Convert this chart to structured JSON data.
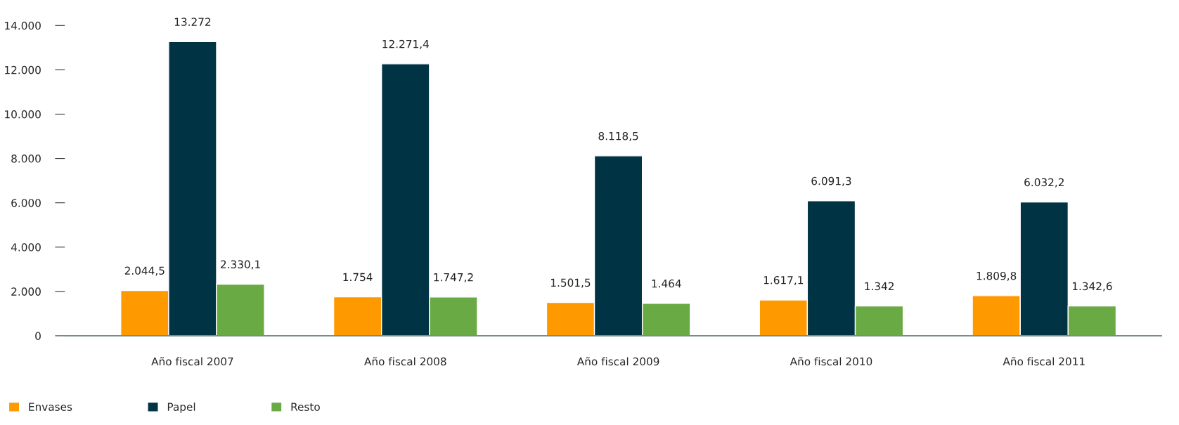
{
  "chart_data": {
    "type": "bar",
    "categories": [
      "Año fiscal 2007",
      "Año fiscal 2008",
      "Año fiscal 2009",
      "Año fiscal 2010",
      "Año fiscal 2011"
    ],
    "series": [
      {
        "name": "Envases",
        "color": "#ff9900",
        "values": [
          2044.5,
          1754,
          1501.5,
          1617.1,
          1809.8
        ],
        "value_labels": [
          "2.044,5",
          "1.754",
          "1.501,5",
          "1.617,1",
          "1.809,8"
        ]
      },
      {
        "name": "Papel",
        "color": "#003344",
        "values": [
          13272,
          12271.4,
          8118.5,
          6091.3,
          6032.2
        ],
        "value_labels": [
          "13.272",
          "12.271,4",
          "8.118,5",
          "6.091,3",
          "6.032,2"
        ]
      },
      {
        "name": "Resto",
        "color": "#6aaa44",
        "values": [
          2330.1,
          1747.2,
          1464,
          1342,
          1342.6
        ],
        "value_labels": [
          "2.330,1",
          "1.747,2",
          "1.464",
          "1.342",
          "1.342,6"
        ]
      }
    ],
    "ylim": [
      0,
      14000
    ],
    "yticks": [
      {
        "value": 0,
        "label": "0"
      },
      {
        "value": 2000,
        "label": "2.000"
      },
      {
        "value": 4000,
        "label": "4.000"
      },
      {
        "value": 6000,
        "label": "6.000"
      },
      {
        "value": 8000,
        "label": "8.000"
      },
      {
        "value": 10000,
        "label": "10.000"
      },
      {
        "value": 12000,
        "label": "12.000"
      },
      {
        "value": 14000,
        "label": "14.000"
      }
    ],
    "grid": false,
    "legend": "bottom left"
  }
}
